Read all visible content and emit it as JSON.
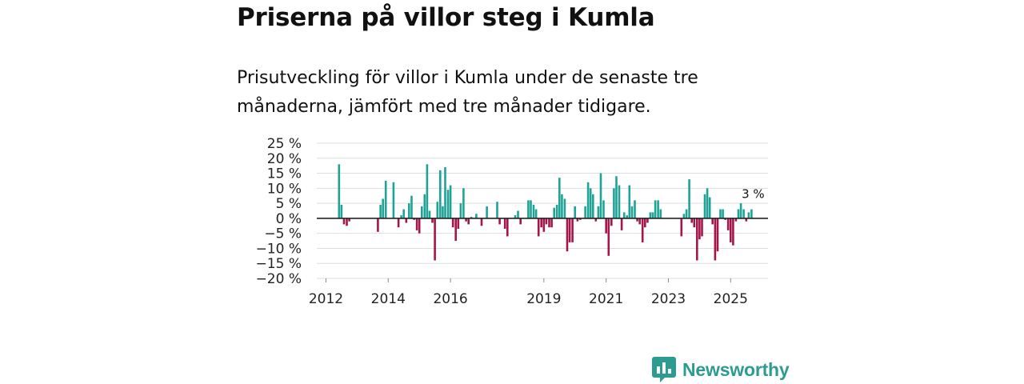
{
  "header": {
    "title": "Priserna på villor steg i Kumla",
    "subtitle": "Prisutveckling för villor i Kumla under de senaste tre månaderna, jämfört med tre månader tidigare."
  },
  "branding": {
    "name": "Newsworthy"
  },
  "colors": {
    "positive": "#1fa396",
    "negative": "#a3164a",
    "grid": "#dddddd",
    "zero": "#222222",
    "brand": "#2b9c8f"
  },
  "chart_data": {
    "type": "bar",
    "title": "",
    "xlabel": "",
    "ylabel": "",
    "ylim": [
      -20,
      25
    ],
    "y_ticks": [
      25,
      20,
      15,
      10,
      5,
      0,
      -5,
      -10,
      -15,
      -20
    ],
    "y_tick_labels": [
      "25 %",
      "20 %",
      "15 %",
      "10 %",
      "5 %",
      "0 %",
      "−5 %",
      "−10 %",
      "−15 %",
      "−20 %"
    ],
    "x_tick_labels": [
      "2012",
      "2014",
      "2016",
      "2019",
      "2021",
      "2023",
      "2025"
    ],
    "x_tick_dates": [
      2012.0,
      2014.0,
      2016.0,
      2019.0,
      2021.0,
      2023.0,
      2025.0
    ],
    "last_value_label": "3 %",
    "series": [
      {
        "name": "Prisutveckling",
        "x": [
          2012.42,
          2012.5,
          2012.58,
          2012.67,
          2012.75,
          2013.67,
          2013.75,
          2013.83,
          2013.92,
          2014.17,
          2014.33,
          2014.42,
          2014.5,
          2014.58,
          2014.67,
          2014.75,
          2014.83,
          2014.92,
          2015.0,
          2015.08,
          2015.17,
          2015.25,
          2015.33,
          2015.42,
          2015.5,
          2015.58,
          2015.67,
          2015.75,
          2015.83,
          2015.92,
          2016.0,
          2016.08,
          2016.17,
          2016.25,
          2016.33,
          2016.42,
          2016.5,
          2016.58,
          2016.67,
          2016.83,
          2017.0,
          2017.17,
          2017.5,
          2017.58,
          2017.75,
          2017.83,
          2018.08,
          2018.17,
          2018.25,
          2018.5,
          2018.58,
          2018.67,
          2018.75,
          2018.83,
          2018.92,
          2019.0,
          2019.08,
          2019.17,
          2019.25,
          2019.33,
          2019.42,
          2019.5,
          2019.58,
          2019.67,
          2019.75,
          2019.83,
          2019.92,
          2020.0,
          2020.08,
          2020.17,
          2020.33,
          2020.42,
          2020.5,
          2020.58,
          2020.67,
          2020.75,
          2020.83,
          2020.92,
          2021.0,
          2021.08,
          2021.17,
          2021.25,
          2021.33,
          2021.42,
          2021.5,
          2021.58,
          2021.67,
          2021.75,
          2021.83,
          2021.92,
          2022.0,
          2022.08,
          2022.17,
          2022.25,
          2022.33,
          2022.42,
          2022.5,
          2022.58,
          2022.67,
          2022.75,
          2023.42,
          2023.5,
          2023.58,
          2023.67,
          2023.75,
          2023.83,
          2023.92,
          2024.0,
          2024.08,
          2024.17,
          2024.25,
          2024.33,
          2024.42,
          2024.5,
          2024.58,
          2024.67,
          2024.75,
          2024.83,
          2024.92,
          2025.0,
          2025.08,
          2025.17,
          2025.25,
          2025.33,
          2025.42,
          2025.5,
          2025.58,
          2025.67
        ],
        "values": [
          18,
          4.5,
          -2,
          -2.5,
          -1,
          -4.5,
          4.5,
          6.5,
          12.5,
          12,
          -3,
          1,
          3,
          -1.5,
          5,
          7.5,
          -0.5,
          -4,
          -5,
          4,
          8,
          18,
          2.5,
          -1.5,
          -14,
          5.5,
          16,
          4,
          17,
          9.5,
          11,
          -3,
          -7.5,
          -3.5,
          5,
          10,
          -1,
          -2,
          0.5,
          1.5,
          -2.5,
          4,
          5.5,
          -2,
          -3.5,
          -6,
          1,
          2.5,
          -2,
          6,
          6,
          4.5,
          3,
          -6,
          -3,
          -4.5,
          -2,
          -3,
          -3,
          3.5,
          4.5,
          13.5,
          8,
          6.5,
          -11,
          -8,
          -8,
          4,
          -1,
          -0.5,
          4,
          12,
          10,
          8,
          -1,
          4,
          15,
          6,
          -5,
          -12.5,
          -2.5,
          10,
          14,
          11,
          -4,
          2,
          1,
          11,
          4,
          6,
          -1,
          -2,
          -8,
          -3,
          -1.5,
          2,
          2,
          6,
          6,
          3,
          -6,
          1.5,
          3,
          13,
          -1.5,
          -3,
          -14,
          -7,
          -6,
          8,
          10,
          7,
          -2,
          -14,
          -11,
          3,
          3,
          -0.5,
          -4,
          -8,
          -9,
          -1,
          3,
          5,
          3,
          -1,
          2,
          3
        ]
      }
    ]
  }
}
